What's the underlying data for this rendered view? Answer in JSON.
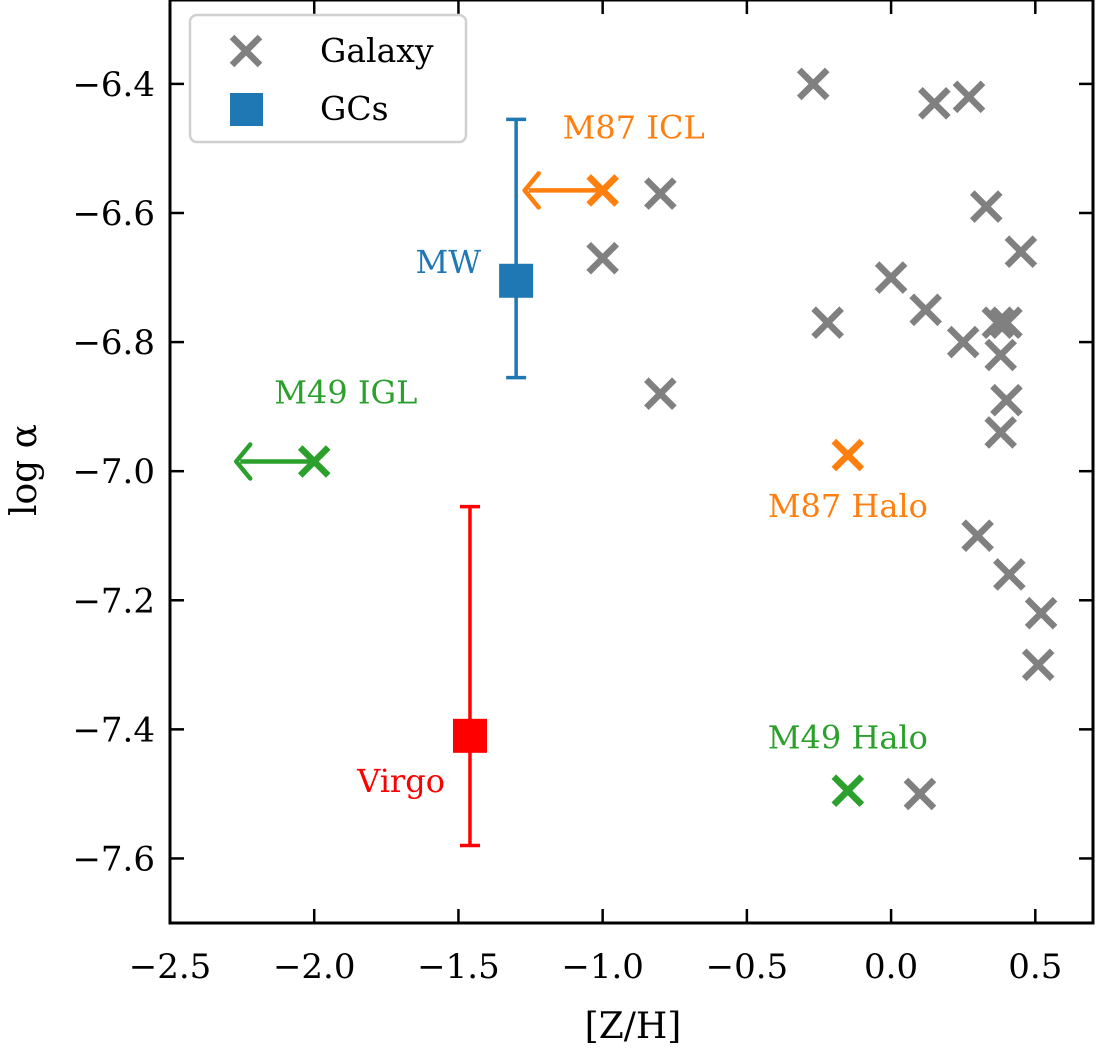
{
  "chart_data": {
    "type": "scatter",
    "xlabel": "[Z/H]",
    "ylabel": "log α",
    "xlim": [
      -2.5,
      0.7
    ],
    "ylim": [
      -7.7,
      -6.27
    ],
    "xticks": [
      -2.5,
      -2.0,
      -1.5,
      -1.0,
      -0.5,
      0.0,
      0.5
    ],
    "xtick_labels": [
      "−2.5",
      "−2.0",
      "−1.5",
      "−1.0",
      "−0.5",
      "0.0",
      "0.5"
    ],
    "yticks": [
      -7.6,
      -7.4,
      -7.2,
      -7.0,
      -6.8,
      -6.6,
      -6.4
    ],
    "ytick_labels": [
      "−7.6",
      "−7.4",
      "−7.2",
      "−7.0",
      "−6.8",
      "−6.6",
      "−6.4"
    ],
    "grid": false,
    "legend": {
      "placement": "top-left",
      "entries": [
        {
          "label": "Galaxy",
          "marker": "x",
          "color": "#808080"
        },
        {
          "label": "GCs",
          "marker": "square",
          "color": "#1f77b4"
        }
      ]
    },
    "series": [
      {
        "name": "Galaxy",
        "marker": "x",
        "color": "#808080",
        "points": [
          [
            -0.27,
            -6.4
          ],
          [
            0.15,
            -6.43
          ],
          [
            0.27,
            -6.42
          ],
          [
            -0.8,
            -6.57
          ],
          [
            -1.0,
            -6.67
          ],
          [
            0.33,
            -6.59
          ],
          [
            0.45,
            -6.66
          ],
          [
            0.0,
            -6.7
          ],
          [
            0.12,
            -6.75
          ],
          [
            -0.22,
            -6.77
          ],
          [
            0.25,
            -6.8
          ],
          [
            0.37,
            -6.77
          ],
          [
            0.4,
            -6.77
          ],
          [
            0.38,
            -6.82
          ],
          [
            -0.8,
            -6.88
          ],
          [
            0.4,
            -6.89
          ],
          [
            0.38,
            -6.94
          ],
          [
            0.3,
            -7.1
          ],
          [
            0.41,
            -7.16
          ],
          [
            0.52,
            -7.22
          ],
          [
            0.51,
            -7.3
          ],
          [
            0.1,
            -7.5
          ]
        ]
      }
    ],
    "special_points": [
      {
        "name": "MW",
        "label": "MW",
        "marker": "square",
        "color": "#1f77b4",
        "x": -1.3,
        "y": -6.705,
        "yerr_low": -6.855,
        "yerr_high": -6.455
      },
      {
        "name": "Virgo",
        "label": "Virgo",
        "marker": "square",
        "color": "#ff0000",
        "x": -1.46,
        "y": -7.41,
        "yerr_low": -7.58,
        "yerr_high": -7.055
      },
      {
        "name": "M87 ICL",
        "label": "M87 ICL",
        "marker": "x",
        "color": "#ff7f0e",
        "x": -1.0,
        "y": -6.565,
        "upper_limit_x": true
      },
      {
        "name": "M49 IGL",
        "label": "M49 IGL",
        "marker": "x",
        "color": "#2ca02c",
        "x": -2.0,
        "y": -6.985,
        "upper_limit_x": true
      },
      {
        "name": "M87 Halo",
        "label": "M87 Halo",
        "marker": "x",
        "color": "#ff7f0e",
        "x": -0.15,
        "y": -6.975
      },
      {
        "name": "M49 Halo",
        "label": "M49 Halo",
        "marker": "x",
        "color": "#2ca02c",
        "x": -0.15,
        "y": -7.495
      }
    ]
  }
}
